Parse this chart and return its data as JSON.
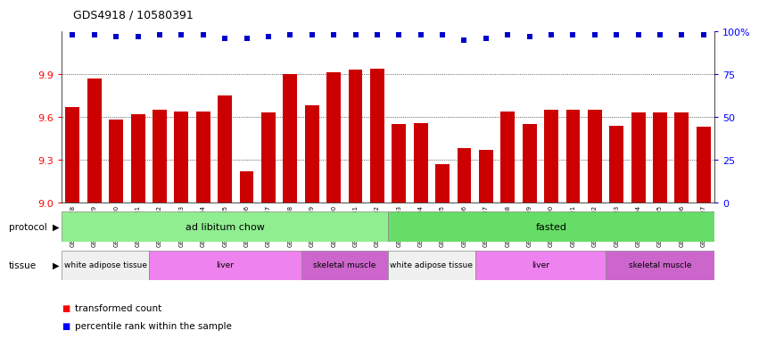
{
  "title": "GDS4918 / 10580391",
  "samples": [
    "GSM1131278",
    "GSM1131279",
    "GSM1131280",
    "GSM1131281",
    "GSM1131282",
    "GSM1131283",
    "GSM1131284",
    "GSM1131285",
    "GSM1131286",
    "GSM1131287",
    "GSM1131288",
    "GSM1131289",
    "GSM1131290",
    "GSM1131291",
    "GSM1131292",
    "GSM1131293",
    "GSM1131294",
    "GSM1131295",
    "GSM1131296",
    "GSM1131297",
    "GSM1131298",
    "GSM1131299",
    "GSM1131300",
    "GSM1131301",
    "GSM1131302",
    "GSM1131303",
    "GSM1131304",
    "GSM1131305",
    "GSM1131306",
    "GSM1131307"
  ],
  "bar_values": [
    9.67,
    9.87,
    9.58,
    9.62,
    9.65,
    9.64,
    9.64,
    9.75,
    9.22,
    9.63,
    9.9,
    9.68,
    9.91,
    9.93,
    9.94,
    9.55,
    9.56,
    9.27,
    9.38,
    9.37,
    9.64,
    9.55,
    9.65,
    9.65,
    9.65,
    9.54,
    9.63,
    9.63,
    9.63,
    9.53
  ],
  "percentile_values": [
    98,
    98,
    97,
    97,
    98,
    98,
    98,
    96,
    96,
    97,
    98,
    98,
    98,
    98,
    98,
    98,
    98,
    98,
    95,
    96,
    98,
    97,
    98,
    98,
    98,
    98,
    98,
    98,
    98,
    98
  ],
  "ylim_left": [
    9.0,
    10.2
  ],
  "ylim_right": [
    0,
    100
  ],
  "yticks_left": [
    9.0,
    9.3,
    9.6,
    9.9
  ],
  "yticks_right": [
    0,
    25,
    50,
    75,
    100
  ],
  "ytick_right_labels": [
    "0",
    "25",
    "50",
    "75",
    "100%"
  ],
  "bar_color": "#cc0000",
  "dot_color": "#0000cc",
  "background_color": "#ffffff",
  "plot_bg_color": "#ffffff",
  "protocol_groups": [
    {
      "label": "ad libitum chow",
      "start": 0,
      "end": 14,
      "color": "#90ee90"
    },
    {
      "label": "fasted",
      "start": 15,
      "end": 29,
      "color": "#66dd66"
    }
  ],
  "tissue_groups": [
    {
      "label": "white adipose tissue",
      "start": 0,
      "end": 3,
      "color": "#f0f0f0"
    },
    {
      "label": "liver",
      "start": 4,
      "end": 10,
      "color": "#ee82ee"
    },
    {
      "label": "skeletal muscle",
      "start": 11,
      "end": 14,
      "color": "#cc66cc"
    },
    {
      "label": "white adipose tissue",
      "start": 15,
      "end": 18,
      "color": "#f0f0f0"
    },
    {
      "label": "liver",
      "start": 19,
      "end": 24,
      "color": "#ee82ee"
    },
    {
      "label": "skeletal muscle",
      "start": 25,
      "end": 29,
      "color": "#cc66cc"
    }
  ]
}
